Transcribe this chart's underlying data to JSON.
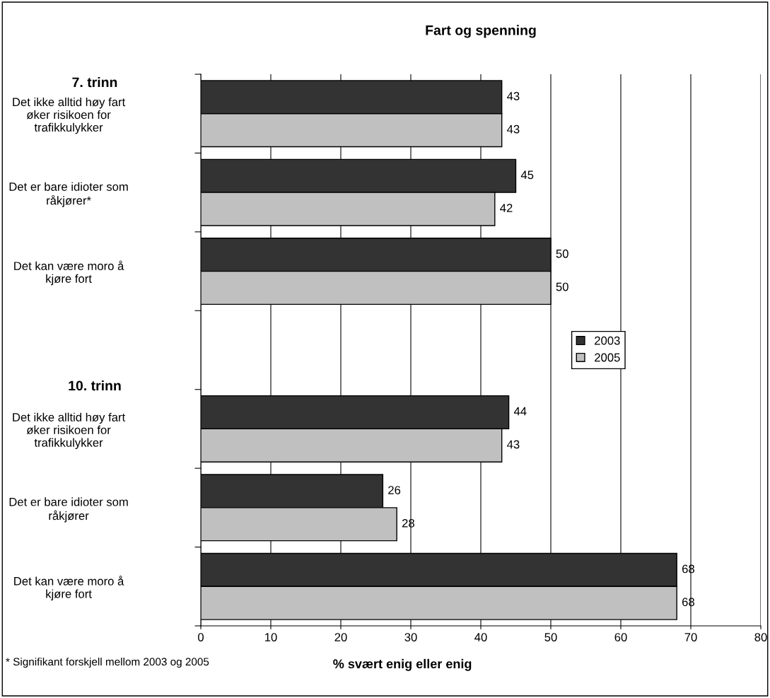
{
  "chart_data": {
    "type": "bar",
    "orientation": "horizontal",
    "title": "Fart og spenning",
    "xlabel": "% svært enig eller enig",
    "categories": [
      "Det ikke alltid høy fart øker risikoen for trafikkulykker",
      "Det er bare idioter som råkjører*",
      "Det kan være moro å kjøre fort",
      null,
      "Det ikke alltid høy fart øker risikoen for trafikkulykker",
      "Det er bare idioter som råkjører",
      "Det kan være moro å kjøre fort"
    ],
    "series": [
      {
        "name": "2003",
        "color": "#333333",
        "values": [
          43,
          45,
          50,
          null,
          44,
          26,
          68
        ]
      },
      {
        "name": "2005",
        "color": "#c0c0c0",
        "values": [
          43,
          42,
          50,
          null,
          43,
          28,
          68
        ]
      }
    ],
    "xlim": [
      0,
      80
    ],
    "xticks": [
      0,
      10,
      20,
      30,
      40,
      50,
      60,
      70,
      80
    ],
    "grid": "x",
    "legend": "right",
    "data_labels": true,
    "annotations": [
      "7. trinn",
      "10. trinn",
      "* Signifikant forskjell mellom 2003 og 2005"
    ]
  }
}
